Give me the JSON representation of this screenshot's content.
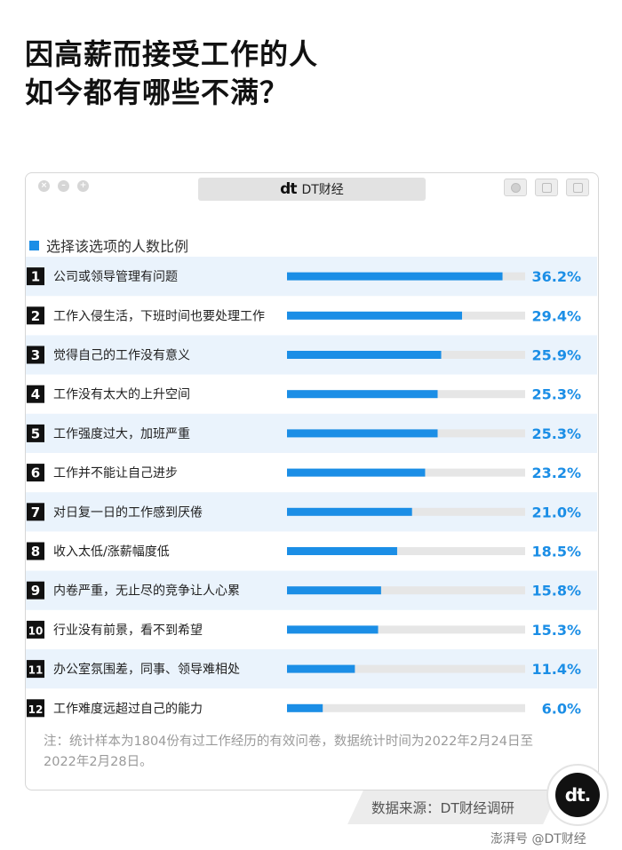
{
  "headline": {
    "line1": "因高薪而接受工作的人",
    "line2": "如今都有哪些不满？"
  },
  "window": {
    "brand_logo": "dt",
    "brand_name": "DT财经"
  },
  "chart_data": {
    "type": "bar",
    "orientation": "horizontal",
    "title": "",
    "legend": "选择该选项的人数比例",
    "xlim": [
      0,
      40
    ],
    "grid": false,
    "bar_color": "#1b8ee6",
    "track_color": "#e6e6e6",
    "label_color": "#1b8ee6",
    "band_color": "#eaf3fc",
    "categories": [
      "公司或领导管理有问题",
      "工作入侵生活，下班时间也要处理工作",
      "觉得自己的工作没有意义",
      "工作没有太大的上升空间",
      "工作强度过大，加班严重",
      "工作并不能让自己进步",
      "对日复一日的工作感到厌倦",
      "收入太低/涨薪幅度低",
      "内卷严重，无止尽的竞争让人心累",
      "行业没有前景，看不到希望",
      "办公室氛围差，同事、领导难相处",
      "工作难度远超过自己的能力"
    ],
    "ranks": [
      "1",
      "2",
      "3",
      "4",
      "5",
      "6",
      "7",
      "8",
      "9",
      "10",
      "11",
      "12"
    ],
    "values": [
      36.2,
      29.4,
      25.9,
      25.3,
      25.3,
      23.2,
      21.0,
      18.5,
      15.8,
      15.3,
      11.4,
      6.0
    ],
    "value_labels": [
      "36.2%",
      "29.4%",
      "25.9%",
      "25.3%",
      "25.3%",
      "23.2%",
      "21.0%",
      "18.5%",
      "15.8%",
      "15.3%",
      "11.4%",
      "6.0%"
    ]
  },
  "note": "注：统计样本为1804份有过工作经历的有效问卷，数据统计时间为2022年2月24日至2022年2月28日。",
  "source": "数据来源：DT财经调研",
  "badge_logo": "dt.",
  "credit": "澎湃号 @DT财经"
}
